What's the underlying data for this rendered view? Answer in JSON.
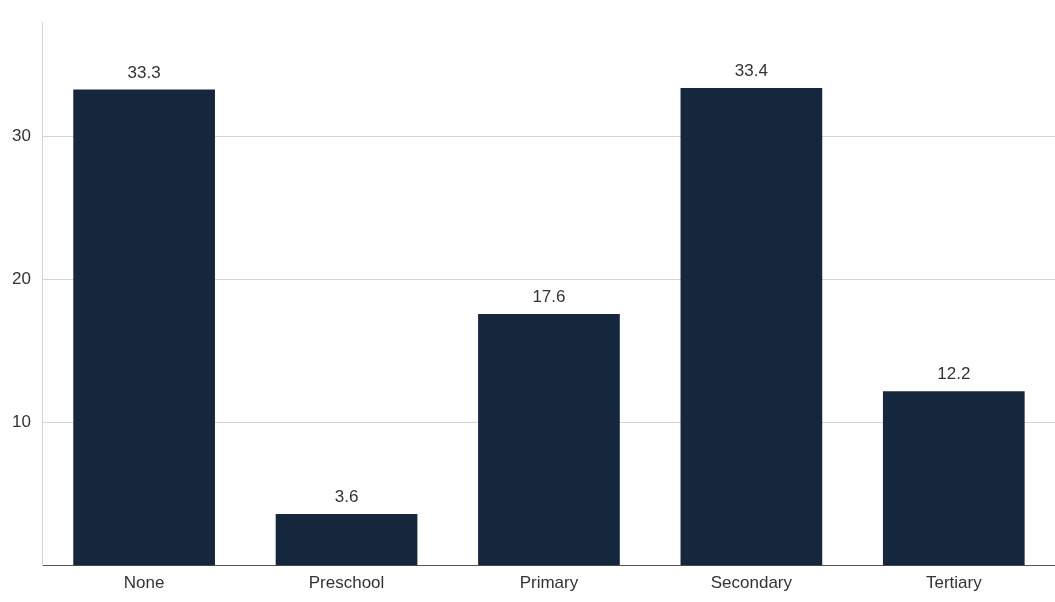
{
  "chart_data": {
    "type": "bar",
    "categories": [
      "None",
      "Preschool",
      "Primary",
      "Secondary",
      "Tertiary"
    ],
    "values": [
      33.3,
      3.6,
      17.6,
      33.4,
      12.2
    ],
    "color": "#14273d",
    "ylim": [
      0,
      38
    ],
    "yticks": [
      10,
      20,
      30
    ],
    "grid": "y",
    "data_labels": true
  }
}
